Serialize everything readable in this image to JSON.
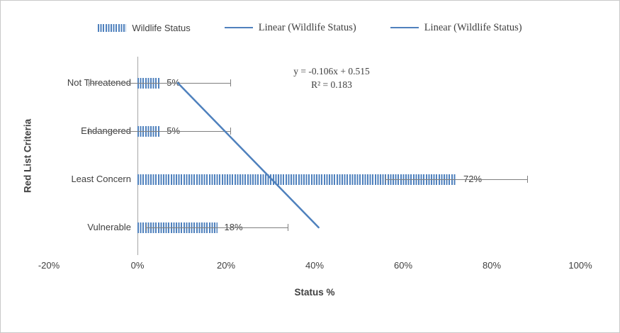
{
  "chart_data": {
    "type": "bar",
    "orientation": "horizontal",
    "xlabel": "Status %",
    "ylabel": "Red List Criteria",
    "categories": [
      "Not Threatened",
      "Endangered",
      "Least Concern",
      "Vulnerable"
    ],
    "values": [
      5,
      5,
      72,
      18
    ],
    "value_labels": [
      "5%",
      "5%",
      "72%",
      "18%"
    ],
    "error_bar": 16,
    "xlim": [
      -20,
      100
    ],
    "x_ticks": [
      -20,
      0,
      20,
      40,
      60,
      80,
      100
    ],
    "x_tick_labels": [
      "-20%",
      "0%",
      "20%",
      "40%",
      "60%",
      "80%",
      "100%"
    ],
    "grid": false,
    "legend_position": "top",
    "legend": [
      {
        "label": "Wildlife Status",
        "type": "bar"
      },
      {
        "label": "Linear (Wildlife Status)",
        "type": "line"
      },
      {
        "label": "Linear (Wildlife Status)",
        "type": "line"
      }
    ],
    "trendline": {
      "slope": -0.106,
      "intercept": 0.515,
      "equation": "y = -0.106x + 0.515",
      "r_squared": "R² = 0.183"
    },
    "colors": {
      "bar": "#4f81bd",
      "trendline": "#4f81bd",
      "error_bar": "#7f7f7f",
      "text": "#404040",
      "axis_line": "#a6a6a6"
    }
  }
}
